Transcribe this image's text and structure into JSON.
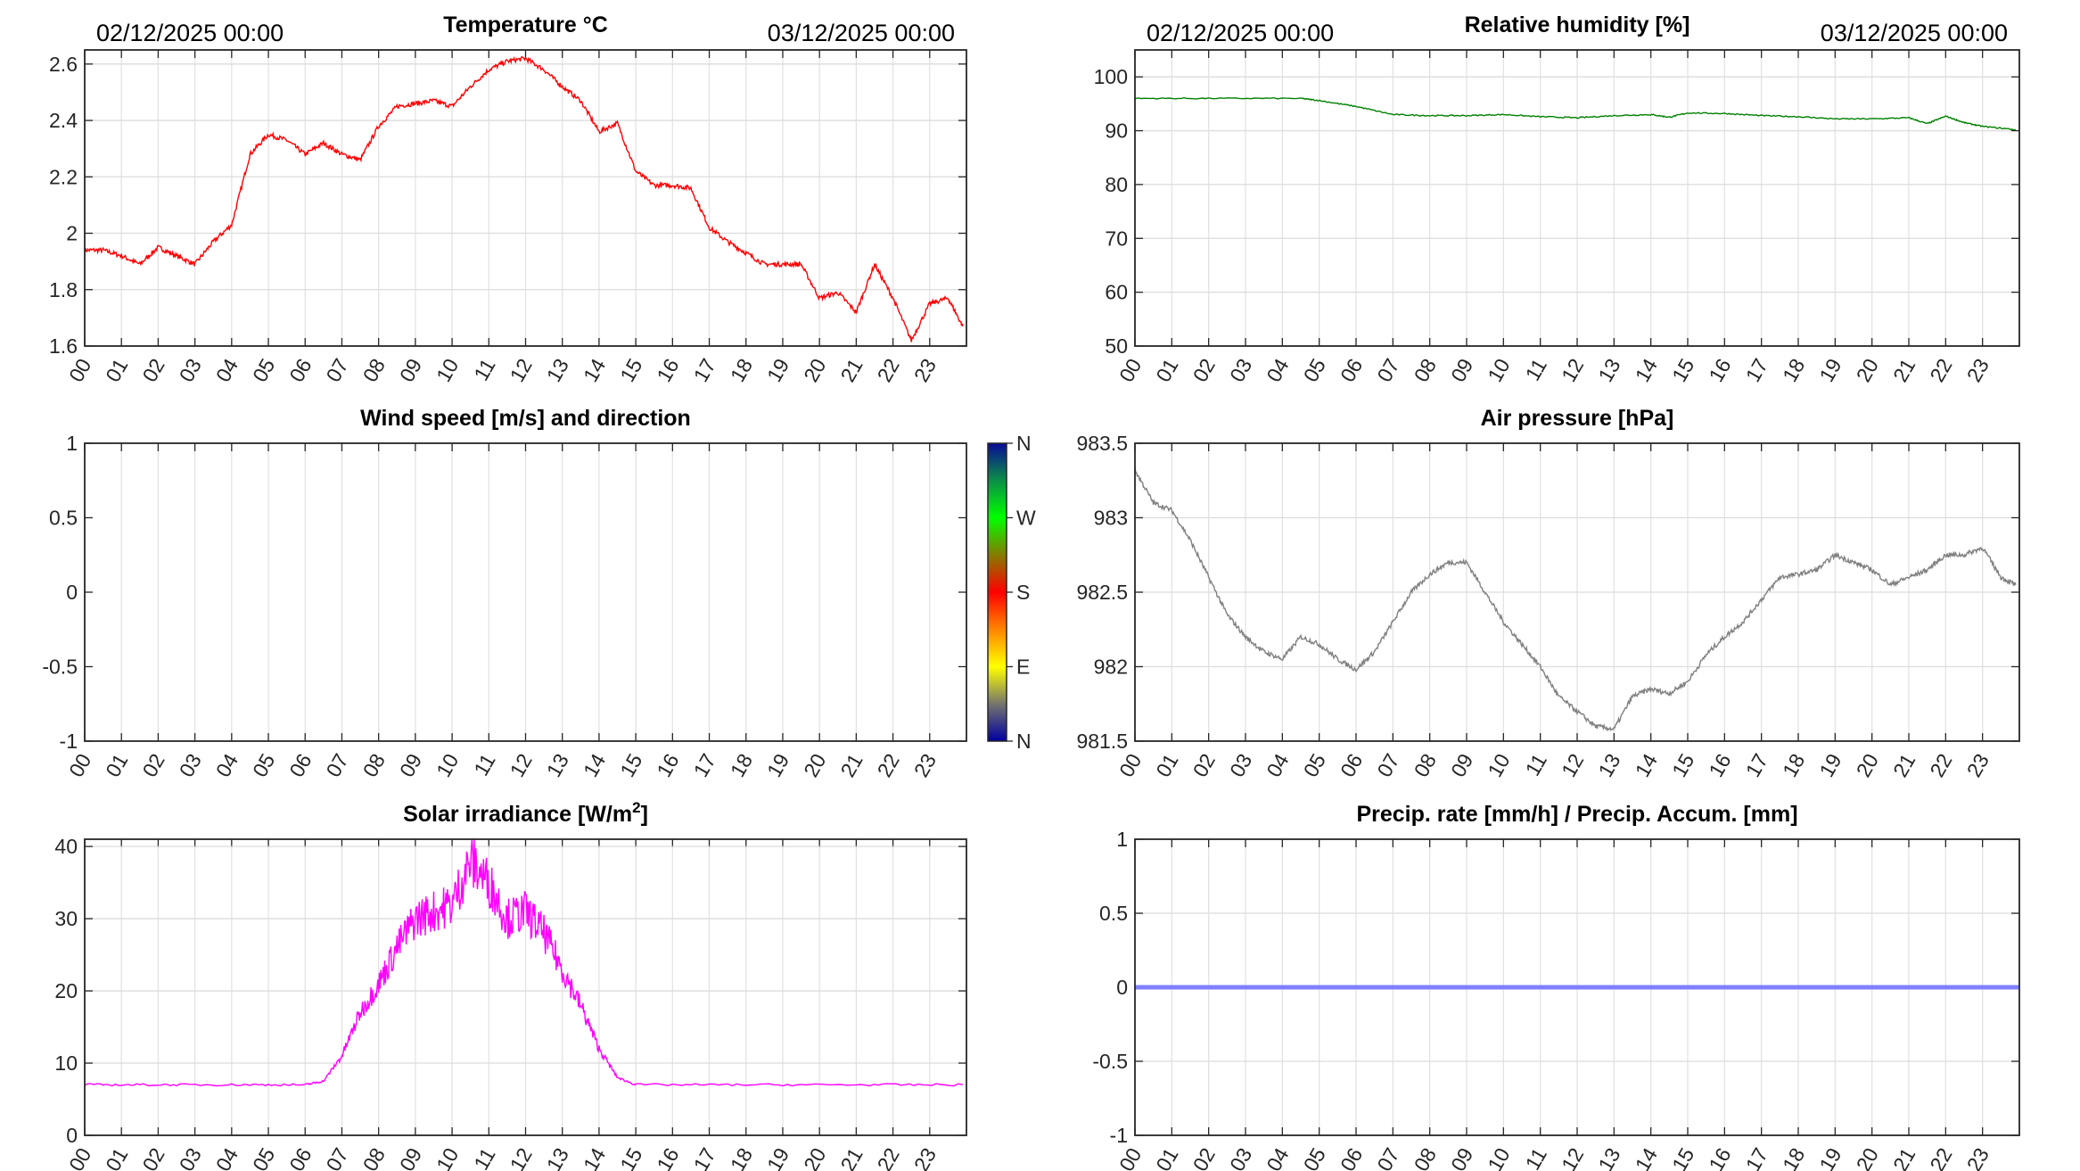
{
  "header": {
    "start": "02/12/2025 00:00",
    "end": "03/12/2025 00:00"
  },
  "colorbar": {
    "labels": [
      "N",
      "W",
      "S",
      "E",
      "N"
    ],
    "colors": [
      "#0a0a96",
      "#0b8a4a",
      "#00ff00",
      "#808000",
      "#ff0000",
      "#ff8000",
      "#ffff00",
      "#808060",
      "#0000a0"
    ]
  },
  "chart_data": [
    {
      "id": "temperature",
      "type": "line",
      "title": "Temperature °C",
      "color": "#ff0000",
      "xlim": [
        0,
        24
      ],
      "ylim": [
        1.6,
        2.65
      ],
      "yticks": [
        1.6,
        1.8,
        2,
        2.2,
        2.4,
        2.6
      ],
      "ytick_labels": [
        "1.6",
        "1.8",
        "2",
        "2.2",
        "2.4",
        "2.6"
      ],
      "show_dates": true,
      "x": [
        0,
        0.5,
        1,
        1.5,
        2,
        2.5,
        3,
        3.5,
        4,
        4.5,
        5,
        5.5,
        6,
        6.5,
        7,
        7.5,
        8,
        8.5,
        9,
        9.5,
        10,
        10.5,
        11,
        11.5,
        12,
        12.5,
        13,
        13.5,
        14,
        14.5,
        15,
        15.5,
        16,
        16.5,
        17,
        17.5,
        18,
        18.5,
        19,
        19.5,
        20,
        20.5,
        21,
        21.5,
        22,
        22.5,
        23,
        23.5,
        23.9
      ],
      "y": [
        1.94,
        1.94,
        1.92,
        1.89,
        1.95,
        1.92,
        1.89,
        1.97,
        2.03,
        2.28,
        2.35,
        2.33,
        2.28,
        2.32,
        2.28,
        2.26,
        2.38,
        2.45,
        2.46,
        2.47,
        2.45,
        2.52,
        2.58,
        2.61,
        2.62,
        2.58,
        2.52,
        2.47,
        2.36,
        2.39,
        2.22,
        2.17,
        2.17,
        2.16,
        2.02,
        1.97,
        1.93,
        1.89,
        1.89,
        1.89,
        1.77,
        1.79,
        1.72,
        1.89,
        1.77,
        1.62,
        1.75,
        1.77,
        1.67
      ]
    },
    {
      "id": "humidity",
      "type": "line",
      "title": "Relative humidity [%]",
      "color": "#008000",
      "xlim": [
        0,
        24
      ],
      "ylim": [
        50,
        105
      ],
      "yticks": [
        50,
        60,
        70,
        80,
        90,
        100
      ],
      "ytick_labels": [
        "50",
        "60",
        "70",
        "80",
        "90",
        "100"
      ],
      "show_dates": true,
      "x": [
        0,
        2,
        4.5,
        5,
        6,
        7,
        8,
        9,
        10,
        11,
        12,
        13,
        14,
        14.5,
        15,
        16,
        17,
        18,
        19,
        20,
        21,
        21.5,
        22,
        22.5,
        23,
        23.9
      ],
      "y": [
        96,
        96,
        96,
        95.6,
        94.5,
        93,
        92.8,
        92.8,
        93,
        92.6,
        92.4,
        92.8,
        93,
        92.5,
        93.3,
        93.2,
        92.8,
        92.6,
        92.2,
        92.2,
        92.4,
        91.3,
        92.7,
        91.5,
        90.8,
        90.2
      ]
    },
    {
      "id": "wind",
      "type": "line",
      "title": "Wind speed [m/s] and direction",
      "color": "#000000",
      "xlim": [
        0,
        24
      ],
      "ylim": [
        -1,
        1
      ],
      "yticks": [
        -1,
        -0.5,
        0,
        0.5,
        1
      ],
      "ytick_labels": [
        "-1",
        "-0.5",
        "0",
        "0.5",
        "1"
      ],
      "grid": false,
      "x": [],
      "y": []
    },
    {
      "id": "pressure",
      "type": "line",
      "title": "Air pressure [hPa]",
      "color": "#808080",
      "xlim": [
        0,
        24
      ],
      "ylim": [
        981.5,
        983.5
      ],
      "yticks": [
        981.5,
        982,
        982.5,
        983,
        983.5
      ],
      "ytick_labels": [
        "981.5",
        "982",
        "982.5",
        "983",
        "983.5"
      ],
      "x": [
        0,
        0.5,
        1,
        1.5,
        2,
        2.5,
        3,
        3.5,
        4,
        4.5,
        5,
        5.5,
        6,
        6.5,
        7,
        7.5,
        8,
        8.5,
        9,
        9.5,
        10,
        10.5,
        11,
        11.5,
        12,
        12.5,
        13,
        13.5,
        14,
        14.5,
        15,
        15.5,
        16,
        16.5,
        17,
        17.5,
        18,
        18.5,
        19,
        19.5,
        20,
        20.5,
        21,
        21.5,
        22,
        22.5,
        23,
        23.5,
        23.9
      ],
      "y": [
        983.32,
        983.1,
        983.05,
        982.85,
        982.6,
        982.35,
        982.2,
        982.1,
        982.05,
        982.2,
        982.15,
        982.05,
        981.98,
        982.1,
        982.3,
        982.5,
        982.62,
        982.7,
        982.7,
        982.5,
        982.3,
        982.15,
        982.0,
        981.8,
        981.7,
        981.6,
        981.58,
        981.8,
        981.85,
        981.82,
        981.9,
        982.08,
        982.2,
        982.3,
        982.45,
        982.6,
        982.62,
        982.65,
        982.75,
        982.7,
        982.65,
        982.55,
        982.6,
        982.65,
        982.75,
        982.75,
        982.8,
        982.6,
        982.55
      ]
    },
    {
      "id": "solar",
      "type": "line",
      "title": "Solar irradiance [W/m",
      "title_sup": "2",
      "title_end": "]",
      "color": "#ff00ff",
      "xlim": [
        0,
        24
      ],
      "ylim": [
        0,
        41
      ],
      "yticks": [
        0,
        10,
        20,
        30,
        40
      ],
      "ytick_labels": [
        "0",
        "10",
        "20",
        "30",
        "40"
      ],
      "x": [
        0,
        2,
        4,
        6,
        6.5,
        7,
        7.5,
        8,
        8.5,
        9,
        9.5,
        10,
        10.5,
        11,
        11.5,
        12,
        12.5,
        13,
        13.5,
        14,
        14.5,
        15,
        18,
        21,
        23.9
      ],
      "y": [
        7,
        7,
        7,
        7,
        7.5,
        11,
        17,
        21,
        26,
        30,
        31,
        32,
        38,
        35,
        30,
        31,
        28,
        23,
        18,
        12,
        8,
        7,
        7,
        7,
        7
      ]
    },
    {
      "id": "precip",
      "type": "line",
      "title": "Precip. rate [mm/h] / Precip. Accum. [mm]",
      "color": "#8080ff",
      "xlim": [
        0,
        24
      ],
      "ylim": [
        -1,
        1
      ],
      "yticks": [
        -1,
        -0.5,
        0,
        0.5,
        1
      ],
      "ytick_labels": [
        "-1",
        "-0.5",
        "0",
        "0.5",
        "1"
      ],
      "line_width": 5,
      "x": [
        0,
        24
      ],
      "y": [
        0,
        0
      ]
    }
  ],
  "xtick_labels": [
    "00",
    "01",
    "02",
    "03",
    "04",
    "05",
    "06",
    "07",
    "08",
    "09",
    "10",
    "11",
    "12",
    "13",
    "14",
    "15",
    "16",
    "17",
    "18",
    "19",
    "20",
    "21",
    "22",
    "23"
  ]
}
